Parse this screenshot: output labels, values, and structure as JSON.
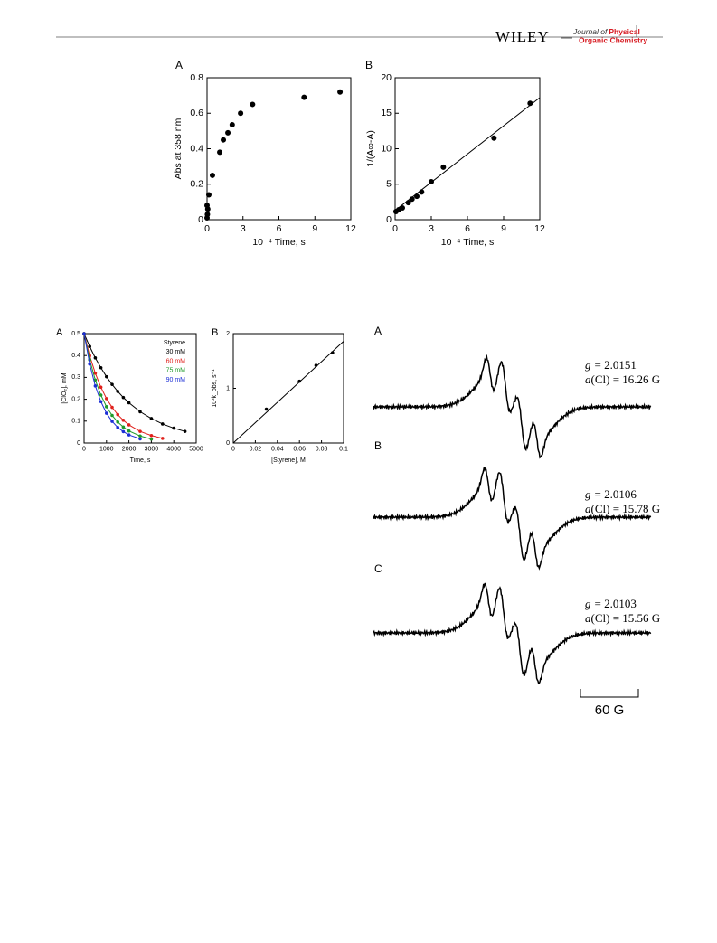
{
  "header": {
    "publisher": "WILEY",
    "journal_prefix": "Journal of",
    "journal_name": [
      "Physical",
      "Organic Chemistry"
    ]
  },
  "chart_data": [
    {
      "type": "scatter",
      "panel": "A",
      "xlabel": "10⁻⁴ Time, s",
      "ylabel": "Abs at 358 nm",
      "x": [
        0.0,
        0.03,
        0.06,
        0.0,
        0.15,
        0.45,
        1.06,
        1.36,
        1.74,
        2.1,
        2.8,
        3.8,
        8.1,
        11.1
      ],
      "values": [
        0.01,
        0.03,
        0.06,
        0.08,
        0.14,
        0.25,
        0.38,
        0.45,
        0.49,
        0.535,
        0.6,
        0.65,
        0.69,
        0.72
      ],
      "color": "#000000",
      "xlim": [
        0,
        12
      ],
      "xticks": [
        0,
        3,
        6,
        9,
        12
      ],
      "ylim": [
        0,
        0.8
      ],
      "yticks": [
        0,
        0.2,
        0.4,
        0.6,
        0.8
      ]
    },
    {
      "type": "scatter",
      "panel": "B",
      "xlabel": "10⁻⁴ Time, s",
      "ylabel": "1/(A∞-A)",
      "x": [
        0.07,
        0.3,
        0.6,
        1.1,
        1.4,
        1.8,
        2.2,
        3.0,
        4.0,
        8.2,
        11.2
      ],
      "values": [
        1.15,
        1.4,
        1.65,
        2.4,
        2.9,
        3.3,
        3.9,
        5.35,
        7.4,
        11.5,
        16.4
      ],
      "fit": {
        "x": [
          0,
          12
        ],
        "values": [
          1.3,
          17.2
        ]
      },
      "color": "#000000",
      "xlim": [
        0,
        12
      ],
      "xticks": [
        0,
        3,
        6,
        9,
        12
      ],
      "ylim": [
        0,
        20
      ],
      "yticks": [
        0,
        5,
        10,
        15,
        20
      ]
    },
    {
      "type": "line",
      "panel": "A",
      "xlabel": "Time, s",
      "ylabel": "[ClO₂], mM",
      "legend_title": "Styrene",
      "legend": "upper right",
      "x": [
        0,
        250,
        500,
        750,
        1000,
        1250,
        1500,
        1750,
        2000,
        2500,
        3000,
        3500,
        4000,
        4500
      ],
      "series": [
        {
          "name": "30 mM",
          "color": "#000000",
          "values": [
            0.5,
            0.441,
            0.389,
            0.344,
            0.303,
            0.268,
            0.236,
            0.208,
            0.184,
            0.143,
            0.112,
            0.087,
            0.068,
            0.053
          ]
        },
        {
          "name": "60 mM",
          "color": "#e0201b",
          "values": [
            0.5,
            0.399,
            0.319,
            0.255,
            0.203,
            0.163,
            0.13,
            0.104,
            0.083,
            0.053,
            0.034,
            0.021,
            null,
            null
          ]
        },
        {
          "name": "75 mM",
          "color": "#1f9a2a",
          "values": [
            0.5,
            0.38,
            0.288,
            0.219,
            0.166,
            0.126,
            0.096,
            0.073,
            0.055,
            0.032,
            0.018,
            null,
            null,
            null
          ]
        },
        {
          "name": "90 mM",
          "color": "#1c2fd6",
          "values": [
            0.5,
            0.361,
            0.261,
            0.189,
            0.136,
            0.099,
            0.071,
            0.052,
            0.037,
            0.019,
            null,
            null,
            null,
            null
          ]
        }
      ],
      "xlim": [
        0,
        5000
      ],
      "xticks": [
        0,
        1000,
        2000,
        3000,
        4000,
        5000
      ],
      "ylim": [
        0,
        0.5
      ],
      "yticks": [
        0,
        0.1,
        0.2,
        0.3,
        0.4,
        0.5
      ]
    },
    {
      "type": "scatter",
      "panel": "B",
      "xlabel": "[Styrene], M",
      "ylabel": "10³k_obs, s⁻¹",
      "x": [
        0.03,
        0.06,
        0.075,
        0.09
      ],
      "values": [
        0.62,
        1.13,
        1.42,
        1.65
      ],
      "fit": {
        "x": [
          0,
          0.1
        ],
        "values": [
          0,
          1.86
        ]
      },
      "color": "#000000",
      "xlim": [
        0,
        0.1
      ],
      "xticks": [
        0,
        0.02,
        0.04,
        0.06,
        0.08,
        0.1
      ],
      "ylim": [
        0,
        2
      ],
      "yticks": [
        0,
        1,
        2
      ]
    }
  ],
  "epr": {
    "panels": [
      {
        "label": "A",
        "g": [
          "g",
          "= 2.0151"
        ],
        "a": [
          "a",
          "(Cl) = 16.26 G"
        ]
      },
      {
        "label": "B",
        "g": [
          "g",
          "= 2.0106"
        ],
        "a": [
          "a",
          "(Cl) = 15.78 G"
        ]
      },
      {
        "label": "C",
        "g": [
          "g",
          "= 2.0103"
        ],
        "a": [
          "a",
          "(Cl) = 15.56 G"
        ]
      }
    ],
    "scale_bar": "60 G"
  }
}
